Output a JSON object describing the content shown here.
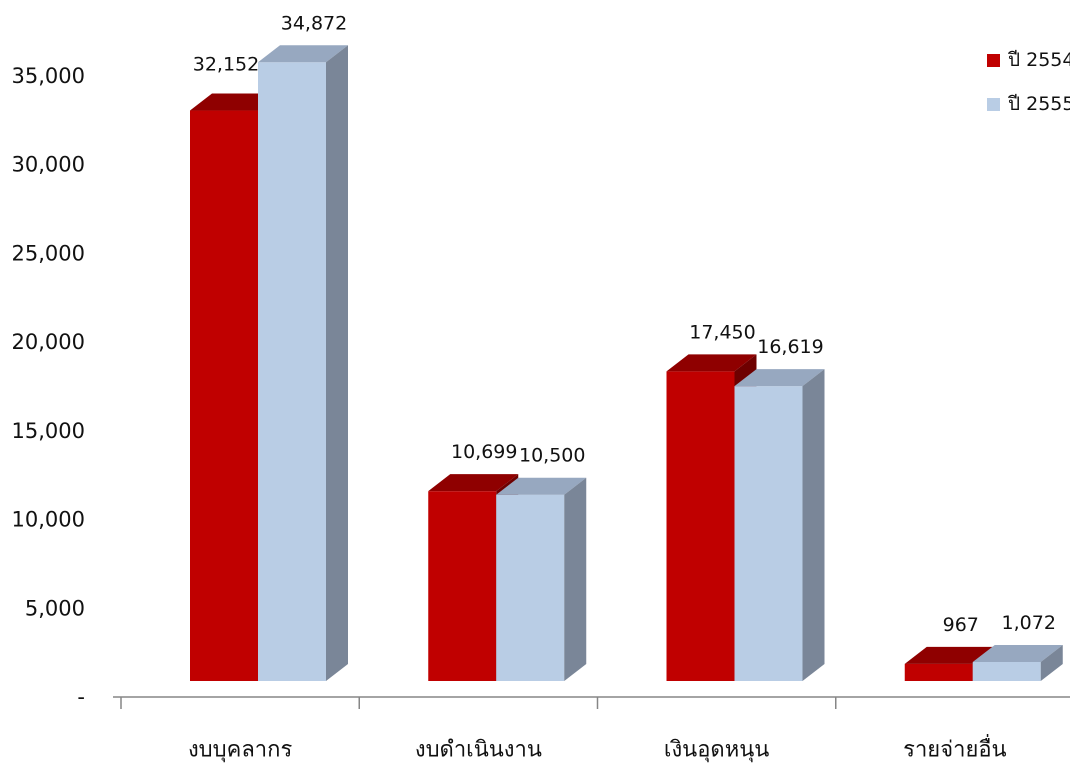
{
  "chart_data": {
    "type": "bar",
    "three_d": true,
    "categories": [
      "งบบุคลากร",
      "งบดำเนินงาน",
      "เงินอุดหนุน",
      "รายจ่ายอื่น"
    ],
    "series": [
      {
        "name": "ปี 2554",
        "values": [
          32152,
          10699,
          17450,
          967
        ],
        "labels": [
          "32,152",
          "10,699",
          "17,450",
          "967"
        ],
        "colors": {
          "front": "#C00000",
          "top": "#8F0000",
          "side": "#6E0000"
        }
      },
      {
        "name": "ปี 2555",
        "values": [
          34872,
          10500,
          16619,
          1072
        ],
        "labels": [
          "34,872",
          "10,500",
          "16,619",
          "1,072"
        ],
        "colors": {
          "front": "#B9CDE5",
          "top": "#97A8C0",
          "side": "#7A8698"
        }
      }
    ],
    "ylim": [
      0,
      35000
    ],
    "y_ticks": [
      {
        "value": 0,
        "label": "-"
      },
      {
        "value": 5000,
        "label": "5,000"
      },
      {
        "value": 10000,
        "label": "10,000"
      },
      {
        "value": 15000,
        "label": "15,000"
      },
      {
        "value": 20000,
        "label": "20,000"
      },
      {
        "value": 25000,
        "label": "25,000"
      },
      {
        "value": 30000,
        "label": "30,000"
      },
      {
        "value": 35000,
        "label": "35,000"
      }
    ],
    "grid": false,
    "legend": {
      "position": "top-right"
    },
    "axis_color": "#868686"
  }
}
